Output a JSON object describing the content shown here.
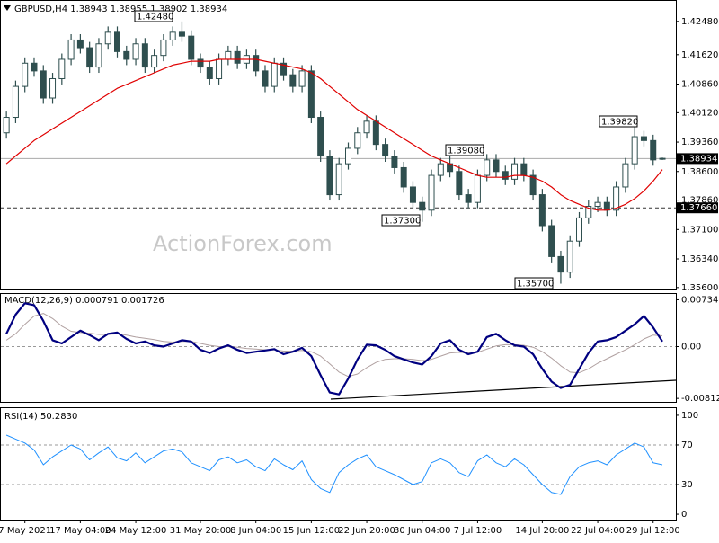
{
  "chart_data": [
    {
      "type": "candlestick",
      "title": "GBPUSD,H4  1.38943 1.38955 1.38902 1.38934",
      "watermark": "ActionForex.com",
      "color": "#2f4f4f",
      "open": [
        1.396,
        1.4,
        1.408,
        1.414,
        1.412,
        1.405,
        1.41,
        1.415,
        1.42,
        1.418,
        1.413,
        1.419,
        1.422,
        1.417,
        1.415,
        1.419,
        1.413,
        1.416,
        1.42,
        1.422,
        1.421,
        1.415,
        1.413,
        1.41,
        1.415,
        1.417,
        1.414,
        1.416,
        1.412,
        1.408,
        1.414,
        1.411,
        1.408,
        1.412,
        1.4,
        1.39,
        1.38,
        1.388,
        1.392,
        1.396,
        1.399,
        1.393,
        1.39,
        1.387,
        1.382,
        1.378,
        1.376,
        1.385,
        1.388,
        1.386,
        1.38,
        1.378,
        1.385,
        1.389,
        1.386,
        1.384,
        1.388,
        1.385,
        1.38,
        1.372,
        1.364,
        1.36,
        1.368,
        1.374,
        1.377,
        1.378,
        1.376,
        1.382,
        1.388,
        1.395,
        1.394,
        1.3894
      ],
      "high": [
        1.4015,
        1.4095,
        1.4155,
        1.4155,
        1.4135,
        1.4115,
        1.4165,
        1.4215,
        1.4215,
        1.4195,
        1.4205,
        1.4235,
        1.4235,
        1.4185,
        1.4205,
        1.4205,
        1.4175,
        1.4215,
        1.4235,
        1.4248,
        1.4225,
        1.4165,
        1.4145,
        1.4165,
        1.4185,
        1.4185,
        1.4175,
        1.4175,
        1.4135,
        1.4155,
        1.4155,
        1.4125,
        1.4135,
        1.4135,
        1.4015,
        1.3915,
        1.3895,
        1.3935,
        1.3975,
        1.4005,
        1.4005,
        1.3945,
        1.3915,
        1.3885,
        1.3835,
        1.3795,
        1.3865,
        1.3895,
        1.3908,
        1.3875,
        1.3815,
        1.3865,
        1.3905,
        1.3905,
        1.3875,
        1.3895,
        1.3895,
        1.3865,
        1.3815,
        1.3735,
        1.3655,
        1.3695,
        1.3755,
        1.3785,
        1.3795,
        1.3795,
        1.3835,
        1.3895,
        1.3982,
        1.3965,
        1.3955,
        1.3896
      ],
      "low": [
        1.3945,
        1.3985,
        1.4065,
        1.4105,
        1.4035,
        1.4035,
        1.4085,
        1.4135,
        1.4165,
        1.4115,
        1.4115,
        1.4175,
        1.4155,
        1.4135,
        1.4135,
        1.4115,
        1.4115,
        1.4145,
        1.4185,
        1.4195,
        1.4135,
        1.4115,
        1.4085,
        1.4085,
        1.4135,
        1.4125,
        1.4125,
        1.4105,
        1.4065,
        1.4065,
        1.4095,
        1.4065,
        1.4065,
        1.3985,
        1.3885,
        1.3785,
        1.3785,
        1.3865,
        1.3905,
        1.3945,
        1.3915,
        1.3885,
        1.3855,
        1.3805,
        1.3765,
        1.373,
        1.3745,
        1.3835,
        1.3845,
        1.3785,
        1.3765,
        1.3765,
        1.3835,
        1.3845,
        1.3825,
        1.3825,
        1.3835,
        1.3785,
        1.3705,
        1.3625,
        1.357,
        1.3585,
        1.3665,
        1.3725,
        1.3755,
        1.3745,
        1.3745,
        1.3805,
        1.3865,
        1.3925,
        1.3875,
        1.389
      ],
      "close": [
        1.4,
        1.408,
        1.414,
        1.412,
        1.405,
        1.41,
        1.415,
        1.42,
        1.418,
        1.413,
        1.419,
        1.422,
        1.417,
        1.415,
        1.419,
        1.413,
        1.416,
        1.42,
        1.422,
        1.421,
        1.415,
        1.413,
        1.41,
        1.415,
        1.417,
        1.414,
        1.416,
        1.412,
        1.408,
        1.414,
        1.411,
        1.408,
        1.412,
        1.4,
        1.39,
        1.38,
        1.388,
        1.392,
        1.396,
        1.399,
        1.393,
        1.39,
        1.387,
        1.382,
        1.378,
        1.376,
        1.385,
        1.388,
        1.386,
        1.38,
        1.378,
        1.385,
        1.389,
        1.386,
        1.384,
        1.388,
        1.385,
        1.38,
        1.372,
        1.364,
        1.36,
        1.368,
        1.374,
        1.377,
        1.378,
        1.376,
        1.382,
        1.388,
        1.395,
        1.394,
        1.389,
        1.3893
      ],
      "ma": {
        "color": "#e00000",
        "values": [
          1.388,
          1.39,
          1.392,
          1.394,
          1.3955,
          1.397,
          1.3985,
          1.4,
          1.4015,
          1.403,
          1.4045,
          1.406,
          1.4075,
          1.4085,
          1.4095,
          1.4105,
          1.4115,
          1.4125,
          1.4135,
          1.414,
          1.4145,
          1.4145,
          1.4145,
          1.415,
          1.415,
          1.415,
          1.415,
          1.415,
          1.4145,
          1.414,
          1.4135,
          1.413,
          1.4125,
          1.4115,
          1.41,
          1.408,
          1.406,
          1.404,
          1.402,
          1.4005,
          1.399,
          1.3975,
          1.396,
          1.3945,
          1.393,
          1.3915,
          1.39,
          1.389,
          1.388,
          1.387,
          1.386,
          1.385,
          1.3845,
          1.3845,
          1.3845,
          1.385,
          1.385,
          1.3845,
          1.3835,
          1.382,
          1.38,
          1.3785,
          1.3775,
          1.3765,
          1.376,
          1.376,
          1.3765,
          1.3775,
          1.379,
          1.381,
          1.3835,
          1.3865
        ]
      },
      "ylim": [
        1.3555,
        1.4301
      ],
      "yticks": [
        {
          "value": 1.4248,
          "label": "1.42480"
        },
        {
          "value": 1.4162,
          "label": "1.41620"
        },
        {
          "value": 1.4086,
          "label": "1.40860"
        },
        {
          "value": 1.4012,
          "label": "1.40120"
        },
        {
          "value": 1.3936,
          "label": "1.39360"
        },
        {
          "value": 1.386,
          "label": "1.38600"
        },
        {
          "value": 1.3786,
          "label": "1.37860"
        },
        {
          "value": 1.371,
          "label": "1.37100"
        },
        {
          "value": 1.3634,
          "label": "1.36340"
        },
        {
          "value": 1.356,
          "label": "1.35600"
        }
      ],
      "last_price": 1.38934,
      "level": {
        "value": 1.3766,
        "label": "1.37660"
      },
      "annotations": [
        {
          "value": 1.4248,
          "label": "1.42480"
        },
        {
          "value": 1.3982,
          "label": "1.39820"
        },
        {
          "value": 1.3908,
          "label": "1.39080"
        },
        {
          "value": 1.373,
          "label": "1.37300"
        },
        {
          "value": 1.357,
          "label": "1.35700"
        }
      ],
      "xticks": [
        {
          "value": 2,
          "label": "7 May 2021"
        },
        {
          "value": 8,
          "label": "17 May 04:00"
        },
        {
          "value": 14,
          "label": "24 May 12:00"
        },
        {
          "value": 21,
          "label": "31 May 20:00"
        },
        {
          "value": 27,
          "label": "8 Jun 04:00"
        },
        {
          "value": 33,
          "label": "15 Jun 12:00"
        },
        {
          "value": 39,
          "label": "22 Jun 20:00"
        },
        {
          "value": 45,
          "label": "30 Jun 04:00"
        },
        {
          "value": 51,
          "label": "7 Jul 12:00"
        },
        {
          "value": 58,
          "label": "14 Jul 20:00"
        },
        {
          "value": 64,
          "label": "22 Jul 04:00"
        },
        {
          "value": 70,
          "label": "29 Jul 12:00"
        }
      ]
    },
    {
      "type": "line",
      "title": "MACD(12,26,9) 0.000791 0.001726",
      "series": [
        {
          "color": "#000080",
          "values": [
            0.002,
            0.005,
            0.0068,
            0.0065,
            0.004,
            0.001,
            0.0005,
            0.0015,
            0.0025,
            0.0018,
            0.001,
            0.002,
            0.0022,
            0.0012,
            0.0005,
            0.0008,
            0.0002,
            0.0,
            0.0005,
            0.001,
            0.0008,
            -0.0005,
            -0.001,
            -0.0003,
            0.0002,
            -0.0005,
            -0.001,
            -0.0008,
            -0.0006,
            -0.0004,
            -0.0012,
            -0.0008,
            -0.0002,
            -0.0015,
            -0.0045,
            -0.0072,
            -0.0075,
            -0.005,
            -0.002,
            0.0003,
            0.0002,
            -0.0005,
            -0.0015,
            -0.002,
            -0.0025,
            -0.0028,
            -0.0015,
            0.0005,
            0.001,
            -0.0005,
            -0.0012,
            -0.0008,
            0.0015,
            0.002,
            0.001,
            0.0002,
            0.0,
            -0.0012,
            -0.0035,
            -0.0055,
            -0.0065,
            -0.006,
            -0.0035,
            -0.001,
            0.0008,
            0.001,
            0.0015,
            0.0025,
            0.0035,
            0.0048,
            0.003,
            0.0008
          ]
        },
        {
          "color": "#b0a0a0",
          "values": [
            0.001,
            0.002,
            0.0035,
            0.0048,
            0.0052,
            0.0044,
            0.0032,
            0.0024,
            0.0022,
            0.0021,
            0.0019,
            0.0019,
            0.002,
            0.0018,
            0.0015,
            0.0013,
            0.0011,
            0.0008,
            0.0007,
            0.0008,
            0.0008,
            0.0005,
            0.0002,
            0.0,
            0.0,
            -0.0001,
            -0.0003,
            -0.0004,
            -0.0005,
            -0.0005,
            -0.0007,
            -0.0007,
            -0.0006,
            -0.0008,
            -0.0015,
            -0.0027,
            -0.004,
            -0.0047,
            -0.0043,
            -0.0033,
            -0.0025,
            -0.002,
            -0.0019,
            -0.0019,
            -0.002,
            -0.0022,
            -0.002,
            -0.0015,
            -0.001,
            -0.0009,
            -0.001,
            -0.0009,
            -0.0004,
            0.0001,
            0.0003,
            0.0003,
            0.0002,
            -0.0001,
            -0.0008,
            -0.0018,
            -0.003,
            -0.004,
            -0.0041,
            -0.0035,
            -0.0026,
            -0.0019,
            -0.0012,
            -0.0005,
            0.0003,
            0.0012,
            0.0018,
            0.0017
          ]
        }
      ],
      "ylim": [
        -0.00867,
        0.00825
      ],
      "yticks": [
        0.007342,
        {
          "value": 0,
          "label": "0.00"
        },
        -0.008126
      ],
      "levels": [
        0
      ]
    },
    {
      "type": "line",
      "title": "RSI(14) 50.2830",
      "series": [
        {
          "color": "#1e90ff",
          "values": [
            80,
            76,
            72,
            65,
            50,
            58,
            64,
            70,
            66,
            55,
            62,
            68,
            57,
            54,
            62,
            52,
            58,
            64,
            66,
            63,
            52,
            48,
            44,
            55,
            58,
            52,
            55,
            48,
            44,
            56,
            50,
            45,
            54,
            35,
            26,
            22,
            42,
            50,
            56,
            60,
            48,
            44,
            40,
            35,
            30,
            33,
            52,
            56,
            52,
            42,
            38,
            54,
            60,
            52,
            48,
            56,
            50,
            40,
            30,
            22,
            20,
            38,
            48,
            52,
            54,
            50,
            60,
            66,
            72,
            68,
            52,
            50
          ]
        }
      ],
      "ylim": [
        -5.4,
        107.2
      ],
      "yticks": [
        100,
        70,
        30,
        0
      ],
      "levels": [
        70,
        30
      ]
    }
  ]
}
